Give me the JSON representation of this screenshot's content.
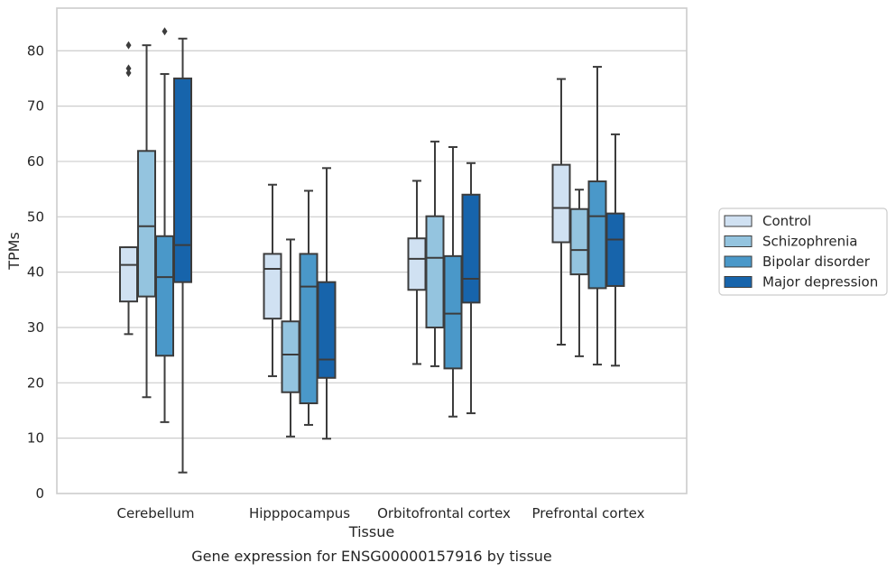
{
  "chart_data": {
    "type": "box",
    "title": "",
    "caption": "Gene expression for ENSG00000157916 by tissue",
    "xlabel": "Tissue",
    "ylabel": "TPMs",
    "ylim": [
      0,
      88
    ],
    "yticks": [
      0,
      10,
      20,
      30,
      40,
      50,
      60,
      70,
      80
    ],
    "grid": "horizontal",
    "legend_position": "center-right, outside plot",
    "categories": [
      "Cerebellum",
      "Hipppocampus",
      "Orbitofrontal cortex",
      "Prefrontal cortex"
    ],
    "series": [
      {
        "name": "Control",
        "color": "#d0e1f2",
        "boxes": [
          {
            "whislo": 28.8,
            "q1": 34.7,
            "med": 41.3,
            "q3": 44.5,
            "whishi": 44.5,
            "fliers": [
              76.0,
              76.8,
              81.0
            ]
          },
          {
            "whislo": 21.2,
            "q1": 31.6,
            "med": 40.6,
            "q3": 43.3,
            "whishi": 55.8,
            "fliers": []
          },
          {
            "whislo": 23.4,
            "q1": 36.8,
            "med": 42.4,
            "q3": 46.1,
            "whishi": 56.5,
            "fliers": []
          },
          {
            "whislo": 26.9,
            "q1": 45.4,
            "med": 51.6,
            "q3": 59.4,
            "whishi": 74.9,
            "fliers": []
          }
        ]
      },
      {
        "name": "Schizophrenia",
        "color": "#94c4df",
        "boxes": [
          {
            "whislo": 17.4,
            "q1": 35.6,
            "med": 48.3,
            "q3": 61.9,
            "whishi": 81.0,
            "fliers": []
          },
          {
            "whislo": 10.3,
            "q1": 18.3,
            "med": 25.1,
            "q3": 31.1,
            "whishi": 45.9,
            "fliers": []
          },
          {
            "whislo": 23.0,
            "q1": 30.0,
            "med": 42.6,
            "q3": 50.1,
            "whishi": 63.6,
            "fliers": []
          },
          {
            "whislo": 24.8,
            "q1": 39.6,
            "med": 44.0,
            "q3": 51.4,
            "whishi": 54.9,
            "fliers": []
          }
        ]
      },
      {
        "name": "Bipolar disorder",
        "color": "#4a98c9",
        "boxes": [
          {
            "whislo": 12.9,
            "q1": 24.9,
            "med": 39.1,
            "q3": 46.5,
            "whishi": 75.8,
            "fliers": [
              83.5
            ]
          },
          {
            "whislo": 12.4,
            "q1": 16.3,
            "med": 37.4,
            "q3": 43.3,
            "whishi": 54.7,
            "fliers": []
          },
          {
            "whislo": 13.9,
            "q1": 22.6,
            "med": 32.5,
            "q3": 42.9,
            "whishi": 62.6,
            "fliers": []
          },
          {
            "whislo": 23.3,
            "q1": 37.1,
            "med": 50.1,
            "q3": 56.4,
            "whishi": 77.1,
            "fliers": []
          }
        ]
      },
      {
        "name": "Major depression",
        "color": "#1764ab",
        "boxes": [
          {
            "whislo": 3.8,
            "q1": 38.2,
            "med": 44.9,
            "q3": 75.0,
            "whishi": 82.2,
            "fliers": []
          },
          {
            "whislo": 9.9,
            "q1": 20.9,
            "med": 24.2,
            "q3": 38.2,
            "whishi": 58.8,
            "fliers": []
          },
          {
            "whislo": 14.5,
            "q1": 34.5,
            "med": 38.8,
            "q3": 54.0,
            "whishi": 59.7,
            "fliers": []
          },
          {
            "whislo": 23.1,
            "q1": 37.5,
            "med": 45.9,
            "q3": 50.6,
            "whishi": 64.9,
            "fliers": []
          }
        ]
      }
    ]
  }
}
